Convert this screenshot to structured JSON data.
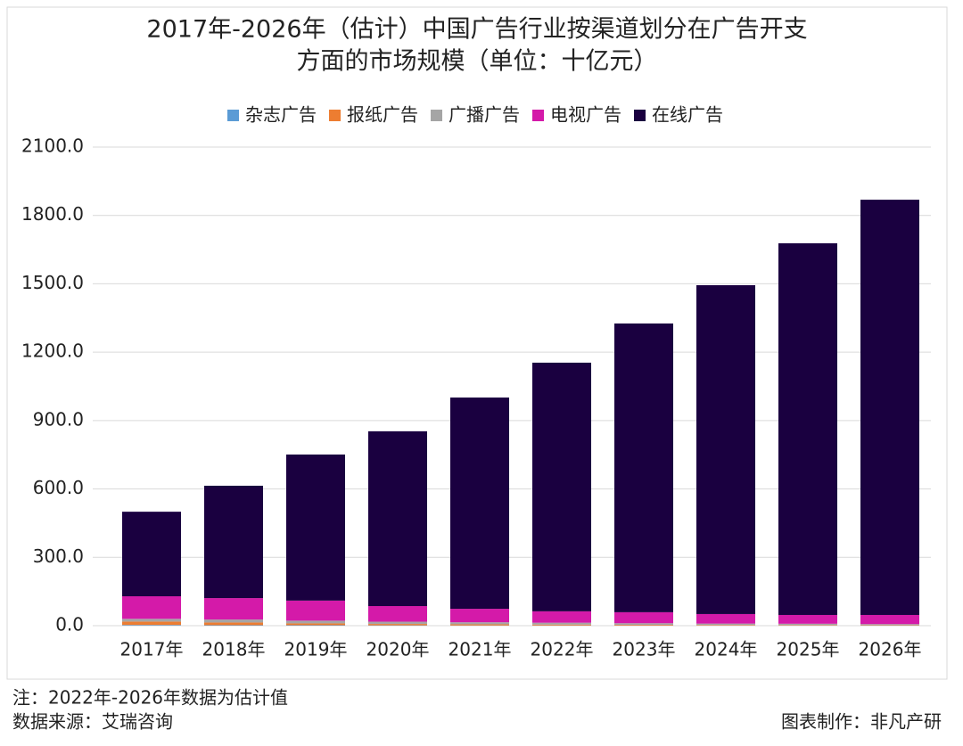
{
  "chart_data": {
    "type": "stacked-bar",
    "title": [
      "2017年-2026年（估计）中国广告行业按渠道划分在广告开支",
      "方面的市场规模（单位：十亿元）"
    ],
    "categories": [
      "2017年",
      "2018年",
      "2019年",
      "2020年",
      "2021年",
      "2022年",
      "2023年",
      "2024年",
      "2025年",
      "2026年"
    ],
    "series": [
      {
        "name": "杂志广告",
        "color": "#5b9bd5",
        "values": [
          3,
          2,
          2,
          1.5,
          1,
          1,
          0.8,
          0.6,
          0.5,
          0.4
        ]
      },
      {
        "name": "报纸广告",
        "color": "#ed7d31",
        "values": [
          15,
          12,
          8,
          6,
          5,
          4,
          3,
          2.5,
          2,
          1.5
        ]
      },
      {
        "name": "广播广告",
        "color": "#a5a5a5",
        "values": [
          12,
          13,
          12,
          10,
          9,
          8,
          7,
          6,
          6,
          5
        ]
      },
      {
        "name": "电视广告",
        "color": "#d41aa9",
        "values": [
          99,
          94,
          88,
          68.5,
          59,
          50,
          48.2,
          41.9,
          38.5,
          40.1
        ]
      },
      {
        "name": "在线广告",
        "color": "#1a0040",
        "values": [
          371,
          493,
          641,
          767,
          927,
          1091,
          1267,
          1443,
          1631,
          1822
        ]
      }
    ],
    "ylim": [
      0,
      2100
    ],
    "yticks": [
      {
        "value": 0,
        "label": "0.0"
      },
      {
        "value": 300,
        "label": "300.0"
      },
      {
        "value": 600,
        "label": "600.0"
      },
      {
        "value": 900,
        "label": "900.0"
      },
      {
        "value": 1200,
        "label": "1200.0"
      },
      {
        "value": 1500,
        "label": "1500.0"
      },
      {
        "value": 1800,
        "label": "1800.0"
      },
      {
        "value": 2100,
        "label": "2100.0"
      }
    ],
    "grid": true,
    "legend": "top",
    "notes": [
      "注：2022年-2026年数据为估计值",
      "数据来源：艾瑞咨询"
    ],
    "credit": "图表制作：非凡产研"
  }
}
